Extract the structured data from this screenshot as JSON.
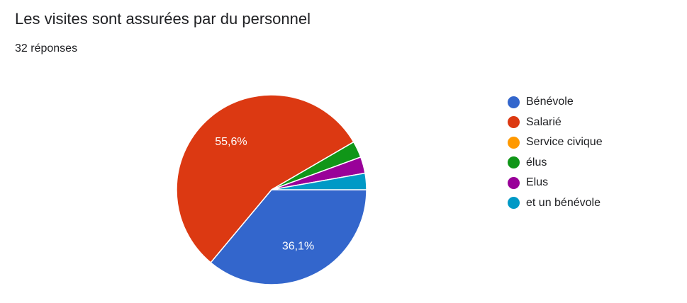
{
  "header": {
    "title": "Les visites sont assurées par du personnel",
    "responses": "32 réponses"
  },
  "chart_data": {
    "type": "pie",
    "legend_position": "right",
    "slices": [
      {
        "label": "Bénévole",
        "value": 36.1,
        "data_label": "36,1%",
        "color": "#3366cc"
      },
      {
        "label": "Salarié",
        "value": 55.6,
        "data_label": "55,6%",
        "color": "#dc3912"
      },
      {
        "label": "Service civique",
        "value": 0,
        "data_label": "",
        "color": "#ff9900"
      },
      {
        "label": "élus",
        "value": 2.8,
        "data_label": "",
        "color": "#109618"
      },
      {
        "label": "Elus",
        "value": 2.8,
        "data_label": "",
        "color": "#990099"
      },
      {
        "label": "et un bénévole",
        "value": 2.8,
        "data_label": "",
        "color": "#0099c6"
      }
    ]
  }
}
